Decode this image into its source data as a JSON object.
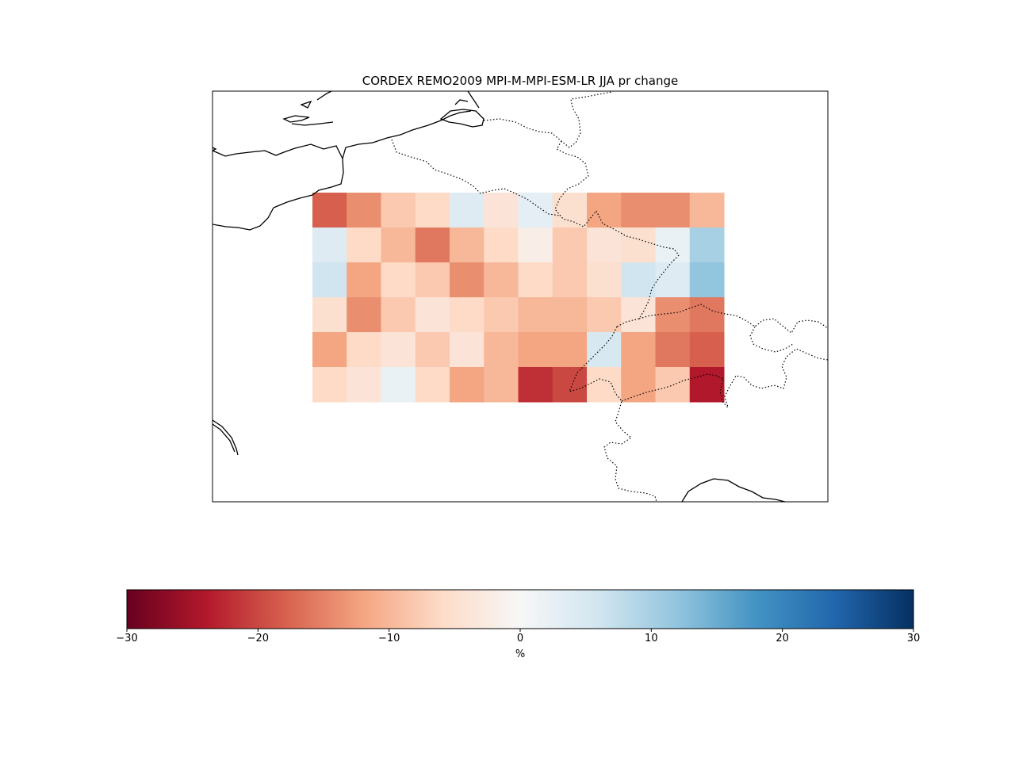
{
  "title": "CORDEX REMO2009 MPI-M-MPI-ESM-LR JJA pr change",
  "colorbar": {
    "label": "%",
    "colormap": "RdBu",
    "vmin": -30,
    "vmax": 30,
    "ticks": [
      -30,
      -20,
      -10,
      0,
      10,
      20,
      30
    ],
    "tick_labels": [
      "−30",
      "−20",
      "−10",
      "0",
      "10",
      "20",
      "30"
    ],
    "colors": [
      "#67001f",
      "#b2182b",
      "#d6604d",
      "#f4a582",
      "#fddbc7",
      "#f7f7f7",
      "#d1e5f0",
      "#92c5de",
      "#4393c3",
      "#2166ac",
      "#053061"
    ]
  },
  "map_features": {
    "coastlines": "solid",
    "borders": "dotted"
  },
  "chart_data": {
    "type": "heatmap",
    "title": "CORDEX REMO2009 MPI-M-MPI-ESM-LR JJA pr change",
    "colorbar_label": "%",
    "value_range": [
      -30,
      30
    ],
    "grid_cols": 12,
    "grid_rows": 6,
    "values": [
      [
        -18,
        -14,
        -8,
        -6,
        4,
        -4,
        3,
        -5,
        -12,
        -14,
        -14,
        -10
      ],
      [
        4,
        -6,
        -10,
        -16,
        -10,
        -6,
        -2,
        -8,
        -4,
        -5,
        2,
        10
      ],
      [
        6,
        -12,
        -6,
        -8,
        -14,
        -10,
        -6,
        -8,
        -5,
        6,
        4,
        12
      ],
      [
        -5,
        -14,
        -8,
        -4,
        -6,
        -8,
        -10,
        -10,
        -8,
        -4,
        -14,
        -16
      ],
      [
        -12,
        -6,
        -4,
        -8,
        -4,
        -10,
        -12,
        -12,
        5,
        -12,
        -16,
        -18
      ],
      [
        -6,
        -4,
        2,
        -6,
        -12,
        -10,
        -22,
        -20,
        -6,
        -12,
        -8,
        -24
      ]
    ]
  }
}
